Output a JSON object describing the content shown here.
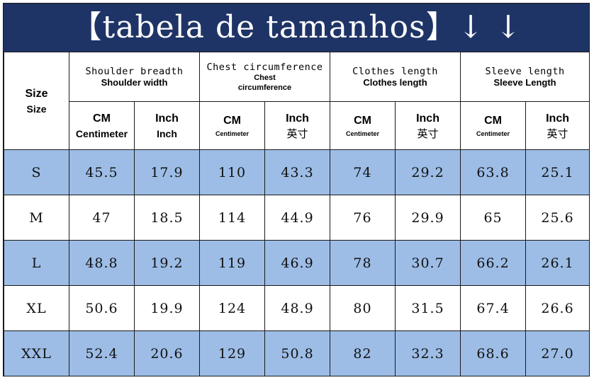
{
  "title": "【tabela de tamanhos】↓ ↓",
  "header": {
    "size_label": "Size",
    "size_sub": "Size",
    "groups": [
      {
        "line1": "Shoulder breadth",
        "line2": "Shoulder width"
      },
      {
        "line1": "Chest circumference",
        "line2": "Chest",
        "line3": "circumference"
      },
      {
        "line1": "Clothes length",
        "line2": "Clothes length"
      },
      {
        "line1": "Sleeve length",
        "line2": "Sleeve Length"
      }
    ],
    "units": [
      {
        "top": "CM",
        "bottom": "Centimeter"
      },
      {
        "top": "Inch",
        "bottom": "Inch"
      },
      {
        "top": "CM",
        "bottom": "Centimeter"
      },
      {
        "top": "Inch",
        "bottom": "英寸"
      },
      {
        "top": "CM",
        "bottom": "Centimeter"
      },
      {
        "top": "Inch",
        "bottom": "英寸"
      },
      {
        "top": "CM",
        "bottom": "Centimeter"
      },
      {
        "top": "Inch",
        "bottom": "英寸"
      }
    ]
  },
  "rows": [
    {
      "size": "S",
      "values": [
        "45.5",
        "17.9",
        "110",
        "43.3",
        "74",
        "29.2",
        "63.8",
        "25.1"
      ]
    },
    {
      "size": "M",
      "values": [
        "47",
        "18.5",
        "114",
        "44.9",
        "76",
        "29.9",
        "65",
        "25.6"
      ]
    },
    {
      "size": "L",
      "values": [
        "48.8",
        "19.2",
        "119",
        "46.9",
        "78",
        "30.7",
        "66.2",
        "26.1"
      ]
    },
    {
      "size": "XL",
      "values": [
        "50.6",
        "19.9",
        "124",
        "48.9",
        "80",
        "31.5",
        "67.4",
        "26.6"
      ]
    },
    {
      "size": "XXL",
      "values": [
        "52.4",
        "20.6",
        "129",
        "50.8",
        "82",
        "32.3",
        "68.6",
        "27.0"
      ]
    }
  ],
  "colors": {
    "banner": "#1f3466",
    "stripe": "#9dbde6",
    "white": "#ffffff"
  }
}
